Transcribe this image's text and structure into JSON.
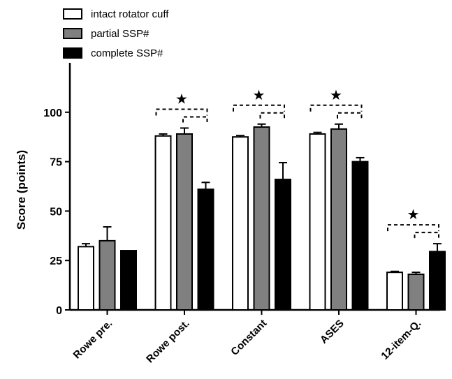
{
  "chart_data": {
    "type": "bar",
    "categories": [
      "Rowe pre.",
      "Rowe post.",
      "Constant",
      "ASES",
      "12-item-Q."
    ],
    "series": [
      {
        "name": "intact rotator cuff",
        "color": "#ffffff",
        "values": [
          32,
          88,
          87.5,
          89,
          19
        ],
        "errors": [
          1.5,
          1,
          0.7,
          0.8,
          0.5
        ]
      },
      {
        "name": "partial SSP#",
        "color": "#808080",
        "values": [
          35,
          89,
          92.5,
          91.5,
          18
        ],
        "errors": [
          7,
          3,
          1.5,
          2.5,
          1
        ]
      },
      {
        "name": "complete SSP#",
        "color": "#000000",
        "values": [
          30,
          61,
          66,
          75,
          29.5
        ],
        "errors": [
          0,
          3.5,
          8.5,
          2,
          4
        ]
      }
    ],
    "significance": [
      {
        "category_index": 1,
        "symbol": "★"
      },
      {
        "category_index": 2,
        "symbol": "★"
      },
      {
        "category_index": 3,
        "symbol": "★"
      },
      {
        "category_index": 4,
        "symbol": "★"
      }
    ],
    "ylabel": "Score (points)",
    "xlabel": "",
    "ylim": [
      0,
      125
    ],
    "yticks": [
      0,
      25,
      50,
      75,
      100
    ],
    "legend_position": "top-left",
    "grid": false
  }
}
